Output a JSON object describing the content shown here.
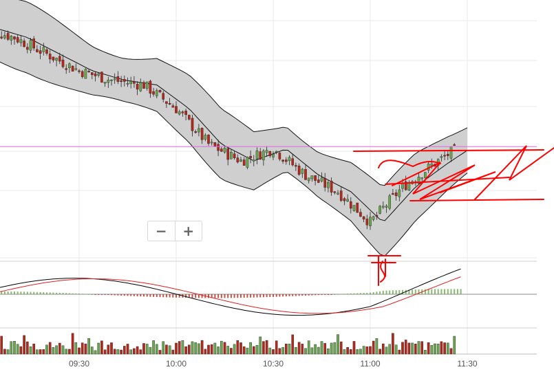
{
  "zoom": {
    "minus_label": "−",
    "plus_label": "+"
  },
  "colors": {
    "band_fill": "#cfcfcf",
    "up": "#6aa84f",
    "down": "#b8281a",
    "reference_line": "#e066e0",
    "macd_line": "#000000",
    "signal_line": "#e02020",
    "annotation": "#ff0000",
    "grid": "#e8e8e8"
  },
  "chart_data": {
    "type": "candlestick",
    "x_ticks": [
      "09:30",
      "10:00",
      "10:30",
      "11:00",
      "11:30"
    ],
    "x_axis_times": {
      "start": "09:06",
      "end": "11:36"
    },
    "candles_summary": [
      {
        "time": "09:10",
        "close": 0.9
      },
      {
        "time": "09:20",
        "close": 0.83
      },
      {
        "time": "09:30",
        "close": 0.76
      },
      {
        "time": "09:40",
        "close": 0.72
      },
      {
        "time": "09:50",
        "close": 0.7
      },
      {
        "time": "10:00",
        "close": 0.6
      },
      {
        "time": "10:10",
        "close": 0.45
      },
      {
        "time": "10:20",
        "close": 0.38
      },
      {
        "time": "10:30",
        "close": 0.43
      },
      {
        "time": "10:40",
        "close": 0.32
      },
      {
        "time": "10:50",
        "close": 0.25
      },
      {
        "time": "11:00",
        "close": 0.12
      },
      {
        "time": "11:10",
        "close": 0.27
      },
      {
        "time": "11:20",
        "close": 0.37
      },
      {
        "time": "11:30",
        "close": 0.46
      }
    ],
    "reference_line": 0.44,
    "indicators": [
      "bollinger_bands",
      "macd",
      "volume"
    ],
    "grid": true
  }
}
